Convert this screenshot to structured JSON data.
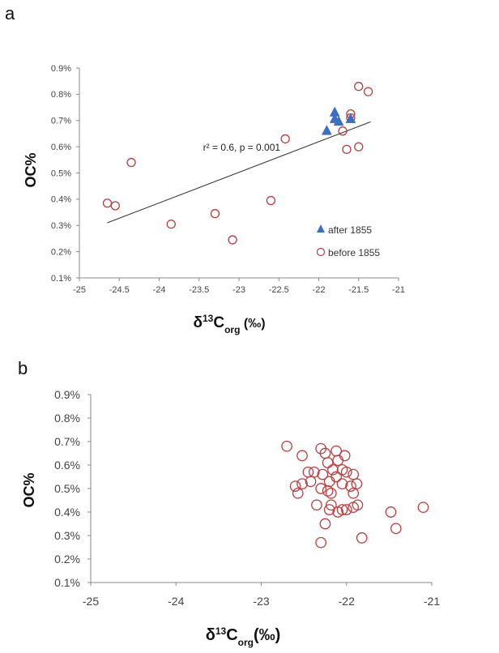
{
  "chart_data": [
    {
      "type": "scatter",
      "panel_label": "a",
      "title": "",
      "xlabel": {
        "main": "δ",
        "sup": "13",
        "base": "C",
        "sub": "org",
        "unit": " (‰)"
      },
      "ylabel": "OC%",
      "xlim": [
        -25,
        -21
      ],
      "ylim": [
        0.001,
        0.009
      ],
      "xticks": [
        -25,
        -24.5,
        -24,
        -23.5,
        -23,
        -22.5,
        -22,
        -21.5,
        -21
      ],
      "xtick_labels": [
        "-25",
        "-24.5",
        "-24",
        "-23.5",
        "-23",
        "-22.5",
        "-22",
        "-21.5",
        "-21"
      ],
      "yticks": [
        0.001,
        0.002,
        0.003,
        0.004,
        0.005,
        0.006,
        0.007,
        0.008,
        0.009
      ],
      "ytick_labels": [
        "0.1%",
        "0.2%",
        "0.3%",
        "0.4%",
        "0.5%",
        "0.6%",
        "0.7%",
        "0.8%",
        "0.9%"
      ],
      "grid": false,
      "legend_position": "bottom-right",
      "series": [
        {
          "name": "after 1855",
          "marker": "triangle",
          "color": "#3a6fc4",
          "points": [
            {
              "x": -21.8,
              "y": 0.0073
            },
            {
              "x": -21.8,
              "y": 0.00705
            },
            {
              "x": -21.75,
              "y": 0.00695
            },
            {
              "x": -21.6,
              "y": 0.00705
            },
            {
              "x": -21.9,
              "y": 0.0066
            }
          ]
        },
        {
          "name": "before 1855",
          "marker": "open-circle",
          "color": "#c0393b",
          "points": [
            {
              "x": -24.65,
              "y": 0.00385
            },
            {
              "x": -24.55,
              "y": 0.00375
            },
            {
              "x": -24.35,
              "y": 0.0054
            },
            {
              "x": -23.85,
              "y": 0.00305
            },
            {
              "x": -23.3,
              "y": 0.00345
            },
            {
              "x": -23.08,
              "y": 0.00245
            },
            {
              "x": -22.6,
              "y": 0.00395
            },
            {
              "x": -22.42,
              "y": 0.0063
            },
            {
              "x": -21.7,
              "y": 0.0066
            },
            {
              "x": -21.6,
              "y": 0.00725
            },
            {
              "x": -21.6,
              "y": 0.0071
            },
            {
              "x": -21.65,
              "y": 0.0059
            },
            {
              "x": -21.5,
              "y": 0.0083
            },
            {
              "x": -21.5,
              "y": 0.006
            },
            {
              "x": -21.38,
              "y": 0.0081
            }
          ]
        }
      ],
      "trendline": {
        "points": [
          {
            "x": -24.65,
            "y": 0.0031
          },
          {
            "x": -21.35,
            "y": 0.00695
          }
        ],
        "color": "#333333",
        "label": "r² = 0.6, p = 0.001",
        "label_anchor": {
          "x": -24.6,
          "y": 0.00545
        }
      }
    },
    {
      "type": "scatter",
      "panel_label": "b",
      "title": "",
      "xlabel": {
        "main": "δ",
        "sup": "13",
        "base": "C",
        "sub": "org",
        "unit": "(‰)"
      },
      "ylabel": "OC%",
      "xlim": [
        -25,
        -21
      ],
      "ylim": [
        0.001,
        0.009
      ],
      "xticks": [
        -25,
        -24,
        -23,
        -22,
        -21
      ],
      "xtick_labels": [
        "-25",
        "-24",
        "-23",
        "-22",
        "-21"
      ],
      "yticks": [
        0.001,
        0.002,
        0.003,
        0.004,
        0.005,
        0.006,
        0.007,
        0.008,
        0.009
      ],
      "ytick_labels": [
        "0.1%",
        "0.2%",
        "0.3%",
        "0.4%",
        "0.5%",
        "0.6%",
        "0.7%",
        "0.8%",
        "0.9%"
      ],
      "grid": false,
      "series": [
        {
          "name": "",
          "marker": "open-circle",
          "color": "#c0393b",
          "points": [
            {
              "x": -22.7,
              "y": 0.0068
            },
            {
              "x": -22.52,
              "y": 0.0064
            },
            {
              "x": -22.3,
              "y": 0.0067
            },
            {
              "x": -22.25,
              "y": 0.0065
            },
            {
              "x": -22.12,
              "y": 0.0066
            },
            {
              "x": -22.02,
              "y": 0.0064
            },
            {
              "x": -22.1,
              "y": 0.0062
            },
            {
              "x": -22.22,
              "y": 0.0061
            },
            {
              "x": -22.38,
              "y": 0.0057
            },
            {
              "x": -22.28,
              "y": 0.0056
            },
            {
              "x": -22.16,
              "y": 0.0058
            },
            {
              "x": -22.05,
              "y": 0.0058
            },
            {
              "x": -22.0,
              "y": 0.0057
            },
            {
              "x": -21.92,
              "y": 0.0056
            },
            {
              "x": -22.45,
              "y": 0.0057
            },
            {
              "x": -22.12,
              "y": 0.0055
            },
            {
              "x": -22.2,
              "y": 0.0053
            },
            {
              "x": -22.42,
              "y": 0.0053
            },
            {
              "x": -22.52,
              "y": 0.0052
            },
            {
              "x": -22.6,
              "y": 0.0051
            },
            {
              "x": -22.3,
              "y": 0.005
            },
            {
              "x": -22.22,
              "y": 0.0049
            },
            {
              "x": -22.05,
              "y": 0.0052
            },
            {
              "x": -21.95,
              "y": 0.0051
            },
            {
              "x": -21.88,
              "y": 0.0052
            },
            {
              "x": -22.57,
              "y": 0.0048
            },
            {
              "x": -22.18,
              "y": 0.0048
            },
            {
              "x": -21.92,
              "y": 0.0048
            },
            {
              "x": -22.35,
              "y": 0.0043
            },
            {
              "x": -22.18,
              "y": 0.0043
            },
            {
              "x": -22.2,
              "y": 0.0041
            },
            {
              "x": -22.1,
              "y": 0.004
            },
            {
              "x": -22.05,
              "y": 0.0041
            },
            {
              "x": -22.0,
              "y": 0.0041
            },
            {
              "x": -21.92,
              "y": 0.0042
            },
            {
              "x": -21.87,
              "y": 0.0043
            },
            {
              "x": -22.25,
              "y": 0.0035
            },
            {
              "x": -22.3,
              "y": 0.0027
            },
            {
              "x": -21.82,
              "y": 0.0029
            },
            {
              "x": -21.48,
              "y": 0.004
            },
            {
              "x": -21.42,
              "y": 0.0033
            },
            {
              "x": -21.1,
              "y": 0.0042
            }
          ]
        }
      ]
    }
  ]
}
